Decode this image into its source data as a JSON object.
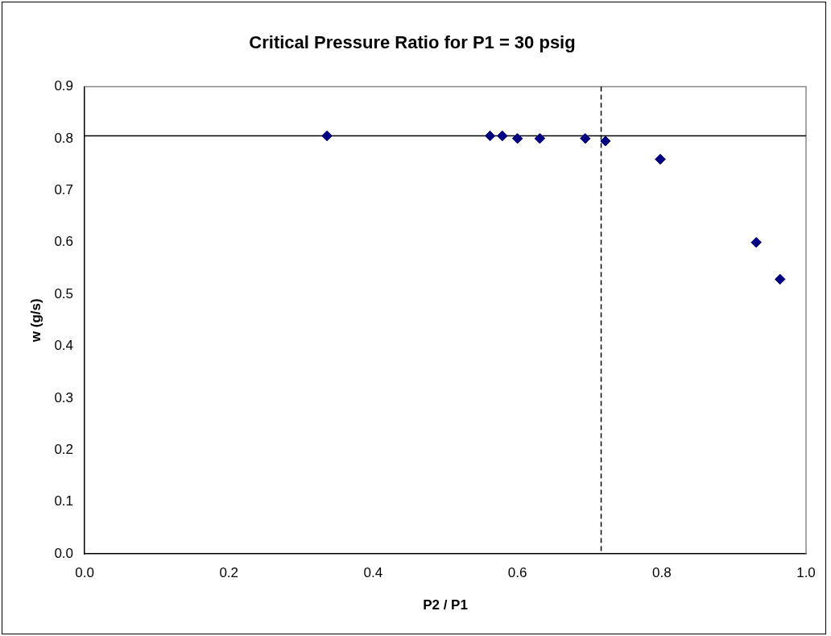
{
  "chart_data": {
    "type": "scatter",
    "title": "Critical Pressure Ratio for P1 = 30 psig",
    "xlabel": "P2 / P1",
    "ylabel": "w (g/s)",
    "x": [
      0.336,
      0.562,
      0.579,
      0.6,
      0.631,
      0.694,
      0.722,
      0.798,
      0.931,
      0.964
    ],
    "values": [
      0.805,
      0.805,
      0.805,
      0.8,
      0.8,
      0.8,
      0.795,
      0.76,
      0.6,
      0.529
    ],
    "color": "#000080",
    "marker": "diamond",
    "grid": false,
    "legend": false,
    "xlim": [
      0,
      1
    ],
    "xticks": [
      {
        "value": 0,
        "label": "0.0"
      },
      0.2,
      0.4,
      0.6,
      0.8,
      {
        "value": 1,
        "label": "1.0"
      }
    ],
    "ylim": [
      0,
      0.9
    ],
    "yticks": [
      {
        "value": 0,
        "label": "0.0"
      },
      0.1,
      0.2,
      0.3,
      0.4,
      0.5,
      0.6,
      0.7,
      0.8,
      0.9
    ],
    "ref_lines": [
      {
        "axis": "y",
        "value": 0.805,
        "color": "#000000",
        "line_style": "solid"
      },
      {
        "axis": "x",
        "value": 0.716,
        "color": "#000000",
        "line_style": "dashed"
      }
    ]
  }
}
